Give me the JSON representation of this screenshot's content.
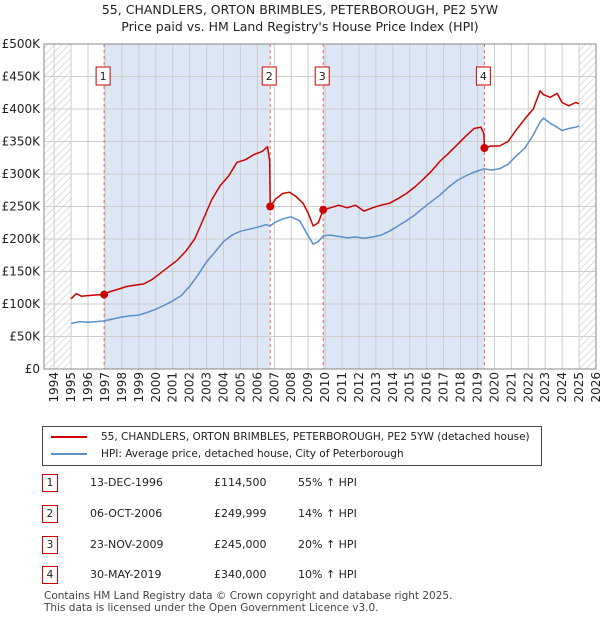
{
  "header": {
    "title_line1": "55, CHANDLERS, ORTON BRIMBLES, PETERBOROUGH, PE2 5YW",
    "title_line2": "Price paid vs. HM Land Registry's House Price Index (HPI)"
  },
  "legend": {
    "property_label": "55, CHANDLERS, ORTON BRIMBLES, PETERBOROUGH, PE2 5YW (detached house)",
    "hpi_label": "HPI: Average price, detached house, City of Peterborough"
  },
  "colors": {
    "property": "#cc0000",
    "hpi": "#5b8fc9",
    "shade": "#dce6f5",
    "grid": "#cccccc",
    "marker_line": "#e06666"
  },
  "transactions": [
    {
      "num": "1",
      "date": "13-DEC-1996",
      "price": "£114,500",
      "hpi": "55% ↑ HPI"
    },
    {
      "num": "2",
      "date": "06-OCT-2006",
      "price": "£249,999",
      "hpi": "14% ↑ HPI"
    },
    {
      "num": "3",
      "date": "23-NOV-2009",
      "price": "£245,000",
      "hpi": "20% ↑ HPI"
    },
    {
      "num": "4",
      "date": "30-MAY-2019",
      "price": "£340,000",
      "hpi": "10% ↑ HPI"
    }
  ],
  "footer": {
    "line1": "Contains HM Land Registry data © Crown copyright and database right 2025.",
    "line2": "This data is licensed under the Open Government Licence v3.0."
  },
  "chart_data": {
    "type": "line",
    "title": "Price paid vs. HM Land Registry's House Price Index (HPI)",
    "xlabel": "",
    "ylabel": "",
    "xlim": [
      1993.4,
      2026.0
    ],
    "ylim": [
      0,
      500000
    ],
    "y_ticks": [
      {
        "value": 0,
        "label": "£0"
      },
      {
        "value": 50000,
        "label": "£50K"
      },
      {
        "value": 100000,
        "label": "£100K"
      },
      {
        "value": 150000,
        "label": "£150K"
      },
      {
        "value": 200000,
        "label": "£200K"
      },
      {
        "value": 250000,
        "label": "£250K"
      },
      {
        "value": 300000,
        "label": "£300K"
      },
      {
        "value": 350000,
        "label": "£350K"
      },
      {
        "value": 400000,
        "label": "£400K"
      },
      {
        "value": 450000,
        "label": "£450K"
      },
      {
        "value": 500000,
        "label": "£500K"
      }
    ],
    "x_ticks": [
      "1994",
      "1995",
      "1996",
      "1997",
      "1998",
      "1999",
      "2000",
      "2001",
      "2002",
      "2003",
      "2004",
      "2005",
      "2006",
      "2007",
      "2008",
      "2009",
      "2010",
      "2011",
      "2012",
      "2013",
      "2014",
      "2015",
      "2016",
      "2017",
      "2018",
      "2019",
      "2020",
      "2021",
      "2022",
      "2023",
      "2024",
      "2025",
      "2026"
    ],
    "grid": true,
    "shaded_ranges": [
      [
        1996.95,
        2006.76
      ],
      [
        2009.89,
        2019.41
      ]
    ],
    "hatched_ranges": [
      [
        1993.4,
        1995.0
      ],
      [
        2025.0,
        2026.0
      ]
    ],
    "sales": [
      {
        "label": "1",
        "x": 1996.95,
        "y": 114500
      },
      {
        "label": "2",
        "x": 2006.76,
        "y": 249999
      },
      {
        "label": "3",
        "x": 2009.89,
        "y": 245000
      },
      {
        "label": "4",
        "x": 2019.41,
        "y": 340000
      }
    ],
    "series": [
      {
        "name": "55, CHANDLERS, ORTON BRIMBLES, PETERBOROUGH, PE2 5YW (detached house)",
        "color": "#cc0000",
        "points": [
          [
            1995.0,
            108000
          ],
          [
            1995.3,
            116000
          ],
          [
            1995.6,
            112000
          ],
          [
            1996.0,
            113000
          ],
          [
            1996.5,
            114000
          ],
          [
            1996.95,
            114500
          ],
          [
            1997.3,
            119000
          ],
          [
            1997.8,
            123000
          ],
          [
            1998.3,
            127000
          ],
          [
            1998.8,
            129000
          ],
          [
            1999.3,
            131000
          ],
          [
            1999.8,
            138000
          ],
          [
            2000.3,
            148000
          ],
          [
            2000.8,
            158000
          ],
          [
            2001.3,
            168000
          ],
          [
            2001.8,
            182000
          ],
          [
            2002.3,
            200000
          ],
          [
            2002.8,
            230000
          ],
          [
            2003.3,
            260000
          ],
          [
            2003.8,
            282000
          ],
          [
            2004.3,
            297000
          ],
          [
            2004.8,
            318000
          ],
          [
            2005.3,
            322000
          ],
          [
            2005.8,
            330000
          ],
          [
            2006.3,
            335000
          ],
          [
            2006.6,
            342000
          ],
          [
            2006.73,
            320000
          ],
          [
            2006.76,
            249999
          ],
          [
            2007.1,
            262000
          ],
          [
            2007.5,
            270000
          ],
          [
            2007.9,
            272000
          ],
          [
            2008.3,
            265000
          ],
          [
            2008.7,
            255000
          ],
          [
            2009.0,
            240000
          ],
          [
            2009.3,
            220000
          ],
          [
            2009.6,
            225000
          ],
          [
            2009.89,
            245000
          ],
          [
            2010.3,
            248000
          ],
          [
            2010.8,
            252000
          ],
          [
            2011.3,
            248000
          ],
          [
            2011.8,
            252000
          ],
          [
            2012.3,
            243000
          ],
          [
            2012.8,
            248000
          ],
          [
            2013.3,
            252000
          ],
          [
            2013.8,
            255000
          ],
          [
            2014.3,
            262000
          ],
          [
            2014.8,
            270000
          ],
          [
            2015.3,
            280000
          ],
          [
            2015.8,
            292000
          ],
          [
            2016.3,
            305000
          ],
          [
            2016.8,
            320000
          ],
          [
            2017.3,
            332000
          ],
          [
            2017.8,
            345000
          ],
          [
            2018.3,
            358000
          ],
          [
            2018.8,
            370000
          ],
          [
            2019.2,
            372000
          ],
          [
            2019.38,
            362000
          ],
          [
            2019.41,
            340000
          ],
          [
            2019.8,
            343000
          ],
          [
            2020.3,
            343000
          ],
          [
            2020.8,
            350000
          ],
          [
            2021.3,
            368000
          ],
          [
            2021.8,
            385000
          ],
          [
            2022.3,
            400000
          ],
          [
            2022.7,
            428000
          ],
          [
            2022.9,
            422000
          ],
          [
            2023.3,
            418000
          ],
          [
            2023.7,
            424000
          ],
          [
            2024.0,
            410000
          ],
          [
            2024.4,
            405000
          ],
          [
            2024.8,
            410000
          ],
          [
            2025.0,
            408000
          ]
        ]
      },
      {
        "name": "HPI: Average price, detached house, City of Peterborough",
        "color": "#5b8fc9",
        "points": [
          [
            1995.0,
            70000
          ],
          [
            1995.5,
            73000
          ],
          [
            1996.0,
            72000
          ],
          [
            1996.5,
            73000
          ],
          [
            1996.95,
            74000
          ],
          [
            1997.5,
            77000
          ],
          [
            1998.0,
            80000
          ],
          [
            1998.5,
            82000
          ],
          [
            1999.0,
            83000
          ],
          [
            1999.5,
            87000
          ],
          [
            2000.0,
            92000
          ],
          [
            2000.5,
            98000
          ],
          [
            2001.0,
            105000
          ],
          [
            2001.5,
            113000
          ],
          [
            2002.0,
            127000
          ],
          [
            2002.5,
            145000
          ],
          [
            2003.0,
            165000
          ],
          [
            2003.5,
            180000
          ],
          [
            2004.0,
            196000
          ],
          [
            2004.5,
            206000
          ],
          [
            2005.0,
            212000
          ],
          [
            2005.5,
            215000
          ],
          [
            2006.0,
            218000
          ],
          [
            2006.5,
            222000
          ],
          [
            2006.76,
            220000
          ],
          [
            2007.0,
            225000
          ],
          [
            2007.5,
            231000
          ],
          [
            2008.0,
            234000
          ],
          [
            2008.5,
            228000
          ],
          [
            2009.0,
            205000
          ],
          [
            2009.3,
            192000
          ],
          [
            2009.6,
            196000
          ],
          [
            2009.89,
            205000
          ],
          [
            2010.3,
            206000
          ],
          [
            2010.8,
            204000
          ],
          [
            2011.3,
            202000
          ],
          [
            2011.8,
            203000
          ],
          [
            2012.3,
            201000
          ],
          [
            2012.8,
            203000
          ],
          [
            2013.3,
            206000
          ],
          [
            2013.8,
            212000
          ],
          [
            2014.3,
            220000
          ],
          [
            2014.8,
            228000
          ],
          [
            2015.3,
            237000
          ],
          [
            2015.8,
            248000
          ],
          [
            2016.3,
            258000
          ],
          [
            2016.8,
            268000
          ],
          [
            2017.3,
            280000
          ],
          [
            2017.8,
            290000
          ],
          [
            2018.3,
            297000
          ],
          [
            2018.8,
            303000
          ],
          [
            2019.41,
            308000
          ],
          [
            2019.8,
            306000
          ],
          [
            2020.3,
            308000
          ],
          [
            2020.8,
            315000
          ],
          [
            2021.3,
            328000
          ],
          [
            2021.8,
            340000
          ],
          [
            2022.3,
            360000
          ],
          [
            2022.7,
            380000
          ],
          [
            2022.9,
            386000
          ],
          [
            2023.3,
            378000
          ],
          [
            2023.7,
            372000
          ],
          [
            2024.0,
            367000
          ],
          [
            2024.4,
            370000
          ],
          [
            2024.8,
            372000
          ],
          [
            2025.0,
            374000
          ]
        ]
      }
    ]
  }
}
